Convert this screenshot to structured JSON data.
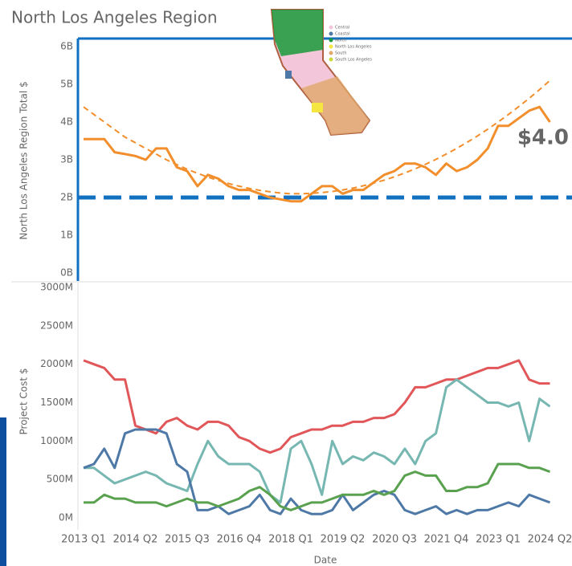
{
  "chart_data": [
    {
      "type": "line",
      "title": "North Los Angeles Region",
      "ylabel": "North Los Angeles Region Total $",
      "ylim": [
        0,
        6
      ],
      "yticks": [
        {
          "value": 0,
          "label": "0B"
        },
        {
          "value": 1,
          "label": "1B"
        },
        {
          "value": 2,
          "label": "2B"
        },
        {
          "value": 3,
          "label": "3B"
        },
        {
          "value": 4,
          "label": "4B"
        },
        {
          "value": 5,
          "label": "5B"
        },
        {
          "value": 6,
          "label": "6B"
        }
      ],
      "series": [
        {
          "color": "#f28e2b",
          "dashed": false,
          "values": [
            3.55,
            3.55,
            3.55,
            3.2,
            3.15,
            3.1,
            3.0,
            3.3,
            3.3,
            2.8,
            2.7,
            2.3,
            2.6,
            2.5,
            2.3,
            2.2,
            2.2,
            2.1,
            2.0,
            1.95,
            1.9,
            1.9,
            2.1,
            2.3,
            2.3,
            2.1,
            2.2,
            2.2,
            2.4,
            2.6,
            2.7,
            2.9,
            2.9,
            2.8,
            2.6,
            2.9,
            2.7,
            2.8,
            3.0,
            3.3,
            3.9,
            3.9,
            4.1,
            4.3,
            4.4,
            4.0
          ]
        },
        {
          "color": "#f28e2b",
          "dashed": true,
          "values": [
            4.4,
            4.2,
            4.0,
            3.8,
            3.6,
            3.45,
            3.3,
            3.15,
            3.0,
            2.87,
            2.75,
            2.64,
            2.54,
            2.45,
            2.37,
            2.3,
            2.24,
            2.19,
            2.15,
            2.12,
            2.1,
            2.1,
            2.11,
            2.13,
            2.16,
            2.2,
            2.25,
            2.31,
            2.38,
            2.46,
            2.55,
            2.65,
            2.76,
            2.88,
            3.01,
            3.15,
            3.3,
            3.46,
            3.63,
            3.81,
            4.0,
            4.2,
            4.41,
            4.63,
            4.86,
            5.1
          ]
        }
      ],
      "reference_line": {
        "value": 2,
        "color": "#1170c0"
      },
      "annotation": {
        "text": "$4.0",
        "color": "#c00000"
      }
    },
    {
      "type": "line",
      "ylabel": "Project Cost $",
      "xlabel": "Date",
      "categories": [
        "2013 Q1",
        null,
        null,
        null,
        null,
        "2014 Q2",
        null,
        null,
        null,
        null,
        "2015 Q3",
        null,
        null,
        null,
        null,
        "2016 Q4",
        null,
        null,
        null,
        null,
        "2018 Q1",
        null,
        null,
        null,
        null,
        "2019 Q2",
        null,
        null,
        null,
        null,
        "2020 Q3",
        null,
        null,
        null,
        null,
        "2021 Q4",
        null,
        null,
        null,
        null,
        "2023 Q1",
        null,
        null,
        null,
        null,
        "2024 Q2"
      ],
      "ylim": [
        0,
        3000
      ],
      "yticks": [
        {
          "value": 0,
          "label": "0M"
        },
        {
          "value": 500,
          "label": "500M"
        },
        {
          "value": 1000,
          "label": "1000M"
        },
        {
          "value": 1500,
          "label": "1500M"
        },
        {
          "value": 2000,
          "label": "2000M"
        },
        {
          "value": 2500,
          "label": "2500M"
        },
        {
          "value": 3000,
          "label": "3000M"
        }
      ],
      "series": [
        {
          "color": "#e15759",
          "values": [
            2050,
            2000,
            1950,
            1800,
            1800,
            1200,
            1150,
            1100,
            1250,
            1300,
            1200,
            1150,
            1250,
            1250,
            1200,
            1050,
            1000,
            900,
            850,
            900,
            1050,
            1100,
            1150,
            1150,
            1200,
            1200,
            1250,
            1250,
            1300,
            1300,
            1350,
            1500,
            1700,
            1700,
            1750,
            1800,
            1800,
            1850,
            1900,
            1950,
            1950,
            2000,
            2050,
            1800,
            1750,
            1750
          ]
        },
        {
          "color": "#76b7b2",
          "values": [
            650,
            650,
            550,
            450,
            500,
            550,
            600,
            550,
            450,
            400,
            350,
            700,
            1000,
            800,
            700,
            700,
            700,
            600,
            300,
            200,
            900,
            1000,
            700,
            300,
            1000,
            700,
            800,
            750,
            850,
            800,
            700,
            900,
            700,
            1000,
            1100,
            1700,
            1800,
            1700,
            1600,
            1500,
            1500,
            1450,
            1500,
            1000,
            1550,
            1450
          ]
        },
        {
          "color": "#4e79a7",
          "values": [
            650,
            700,
            900,
            650,
            1100,
            1150,
            1150,
            1150,
            1100,
            700,
            600,
            100,
            100,
            150,
            50,
            100,
            150,
            300,
            100,
            50,
            250,
            100,
            50,
            50,
            100,
            300,
            100,
            200,
            300,
            350,
            300,
            100,
            50,
            100,
            150,
            50,
            100,
            50,
            100,
            100,
            150,
            200,
            150,
            300,
            250,
            200
          ]
        },
        {
          "color": "#59a14f",
          "values": [
            200,
            200,
            300,
            250,
            250,
            200,
            200,
            200,
            150,
            200,
            250,
            200,
            200,
            150,
            200,
            250,
            350,
            400,
            300,
            150,
            100,
            150,
            200,
            200,
            250,
            300,
            300,
            300,
            350,
            300,
            350,
            550,
            600,
            550,
            550,
            350,
            350,
            400,
            400,
            450,
            700,
            700,
            700,
            650,
            650,
            600
          ]
        }
      ]
    }
  ],
  "map": {
    "legend": [
      {
        "label": "Central",
        "color": "#f4c6d9"
      },
      {
        "label": "Coastal",
        "color": "#4e79a7"
      },
      {
        "label": "North",
        "color": "#1a9a3a"
      },
      {
        "label": "North Los Angeles",
        "color": "#f5e642"
      },
      {
        "label": "South",
        "color": "#e0a86a"
      },
      {
        "label": "South Los Angeles",
        "color": "#c9d93a"
      }
    ]
  }
}
